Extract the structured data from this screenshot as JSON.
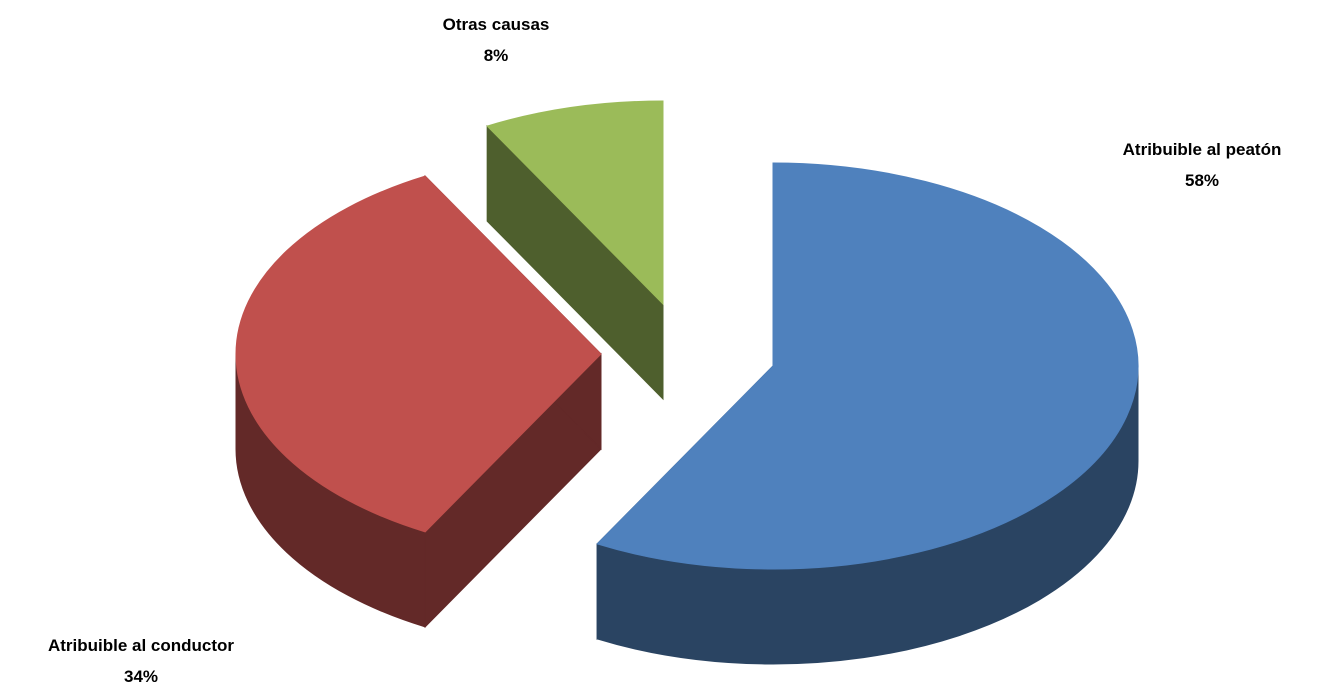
{
  "chart_data": {
    "type": "pie",
    "style": "3d-exploded",
    "legend": "none",
    "slices": [
      {
        "label": "Atribuible al peatón",
        "value": 58,
        "display": "58%",
        "color": "#4f81bd",
        "side_color": "#2a4462"
      },
      {
        "label": "Atribuible al conductor",
        "value": 34,
        "display": "34%",
        "color": "#c0504d",
        "side_color": "#632928"
      },
      {
        "label": "Otras causas",
        "value": 8,
        "display": "8%",
        "color": "#9bbb59",
        "side_color": "#4e5f2d"
      }
    ]
  }
}
